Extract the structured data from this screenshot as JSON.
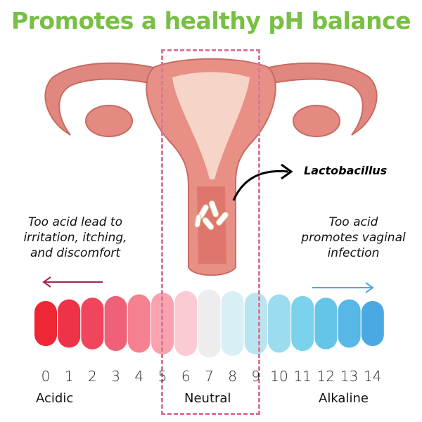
{
  "title": "Promotes a healthy pH balance",
  "label_bacteria": "Lactobacillus",
  "note_left": [
    "Too acid lead to",
    "irritation, itching,",
    "and discomfort"
  ],
  "note_right": [
    "Too acid",
    "promotes vaginal",
    "infection"
  ],
  "colors": {
    "title": "#78c043",
    "highlight_box": "#d97899",
    "left_arrow": "#a3244a",
    "right_arrow": "#4aa9e2"
  },
  "ph_scale": {
    "values": [
      "0",
      "1",
      "2",
      "3",
      "4",
      "5",
      "6",
      "7",
      "8",
      "9",
      "10",
      "11",
      "12",
      "13",
      "14"
    ],
    "colors": [
      "#ee2636",
      "#ee3348",
      "#f0455d",
      "#f06079",
      "#f5808f",
      "#f8a3ae",
      "#fbcad3",
      "#ededed",
      "#d8f0f5",
      "#b8e5f0",
      "#9bdcee",
      "#7ad2ec",
      "#65c5e8",
      "#57b7e6",
      "#4aa9e2"
    ],
    "zones": {
      "acidic": "Acidic",
      "neutral": "Neutral",
      "alkaline": "Alkaline"
    },
    "highlighted_range": [
      "5",
      "9"
    ]
  }
}
